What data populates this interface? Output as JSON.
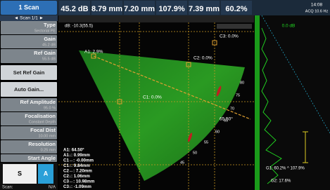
{
  "header": {
    "scan_button": "1 Scan",
    "scan_nav": "◄ Scan 1/1 ►",
    "readings": [
      "45.2 dB",
      "8.79 mm",
      "7.20 mm",
      "107.9%",
      "7.39 mm",
      "60.2%"
    ],
    "time": "14:08",
    "acq": "ACQ 10.6 Hz"
  },
  "menu": [
    {
      "label": "Type",
      "value": "Sectorial PE"
    },
    {
      "label": "Gain",
      "value": "45.2 dB"
    },
    {
      "label": "Ref Gain",
      "value": "55.5 dB"
    },
    {
      "label": "Set Ref Gain"
    },
    {
      "label": "Auto Gain..."
    },
    {
      "label": "Ref Amplitude",
      "value": "95.0 %"
    },
    {
      "label": "Focalisation",
      "value": "Constant Depth"
    },
    {
      "label": "Focal Dist",
      "value": "10.00 mm"
    },
    {
      "label": "Resolution",
      "value": "0.25 mm"
    },
    {
      "label": "Start Angle"
    }
  ],
  "footer": {
    "s": "S",
    "a": "A",
    "scan_label": "Scan:",
    "scan_value": "N/A"
  },
  "sector": {
    "gain": "dB: -10.3(55.5)",
    "cursors": [
      "A1: 2.9%",
      "C2: 0.0%",
      "C3: 0.0%",
      "C1: 0.0%"
    ],
    "angle": "65.50°",
    "angle_labels": [
      "80",
      "75",
      "70",
      "65",
      "60",
      "55",
      "50",
      "45"
    ],
    "readouts": [
      "A1: 64.50°",
      "A1↓: 0.99mm",
      "C1↔: -0.00mm",
      "C1↓: 9.84mm",
      "C2↔: 7.20mm",
      "C2↓: 1.06mm",
      "C3↔: 10.98mm",
      "C3↓: -1.09mm"
    ]
  },
  "ascan": {
    "gain": "0.0 dB",
    "g1": "G1: 60.2% ^ 107.9%",
    "g2": "G2: 17.6%"
  }
}
